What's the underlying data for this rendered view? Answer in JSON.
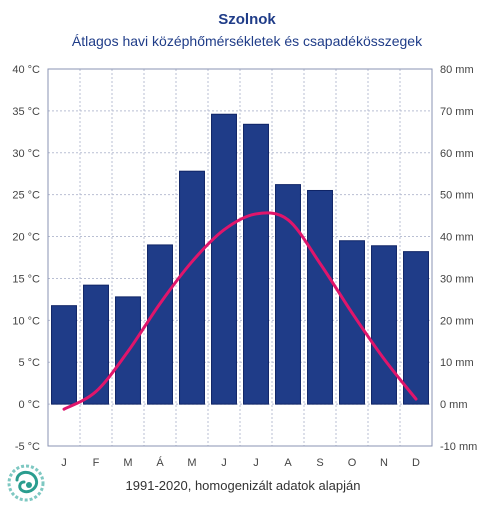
{
  "chart_data": {
    "type": "bar+line",
    "title": "Szolnok",
    "subtitle": "Átlagos havi középhőmérsékletek  és csapadékösszegek",
    "source_note": "1991-2020, homogenizált adatok alapján",
    "categories": [
      "J",
      "F",
      "M",
      "Á",
      "M",
      "J",
      "J",
      "A",
      "S",
      "O",
      "N",
      "D"
    ],
    "series": [
      {
        "kind": "bar",
        "axis": "right",
        "values": [
          23.5,
          28.4,
          25.6,
          38.0,
          55.6,
          69.2,
          66.8,
          52.4,
          51.0,
          39.0,
          37.8,
          36.4
        ]
      },
      {
        "kind": "line",
        "axis": "left",
        "values": [
          -0.6,
          1.5,
          6.3,
          12.0,
          17.0,
          20.8,
          22.7,
          22.0,
          16.8,
          10.9,
          5.4,
          0.6
        ]
      }
    ],
    "left_axis": {
      "ylim": [
        -5,
        40
      ],
      "step": 5,
      "unit_suffix": " °C"
    },
    "right_axis": {
      "ylim": [
        -10,
        80
      ],
      "step": 10,
      "unit_suffix": " mm"
    },
    "grid": true,
    "colors": {
      "bar": "#1f3c88",
      "bar_edge": "#0f2466",
      "line": "#e0156b",
      "grid": "#b9bfd3",
      "frame": "#8a93b3",
      "title": "#1f3c88"
    }
  },
  "logo": {
    "icon": "swirl-logo-icon"
  }
}
